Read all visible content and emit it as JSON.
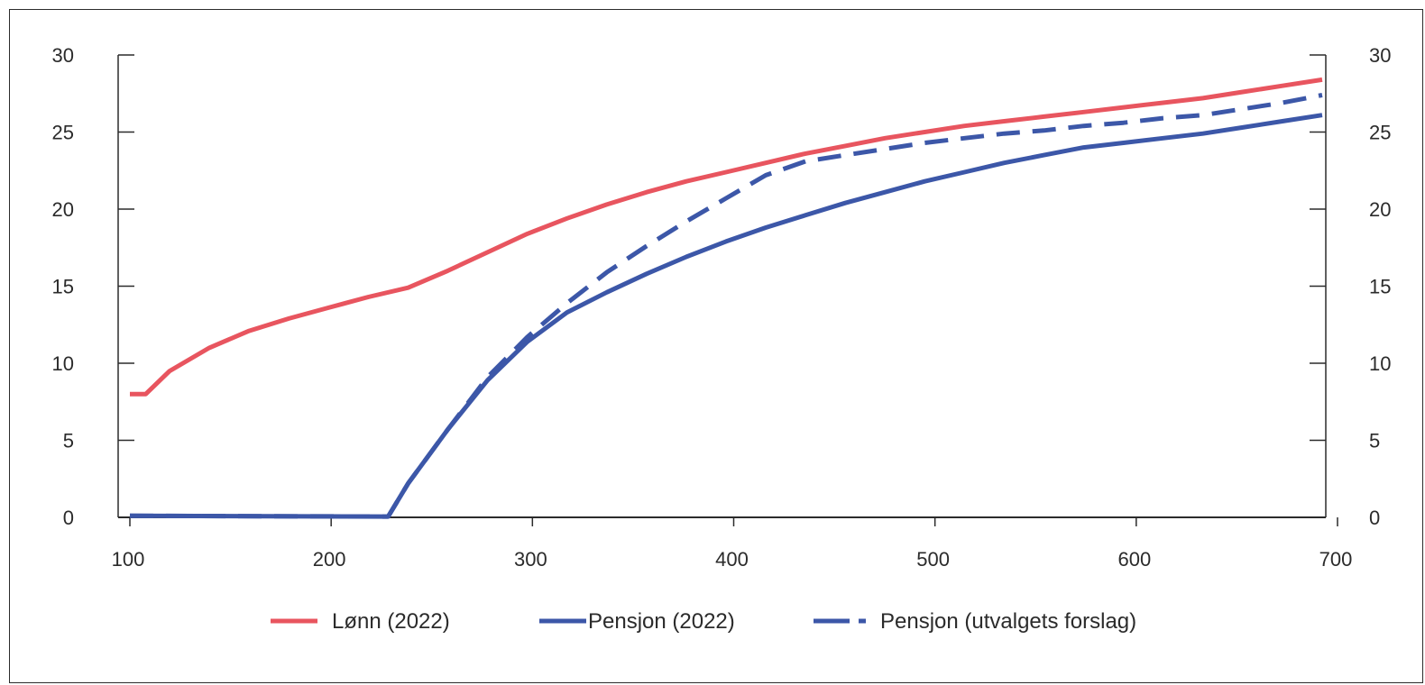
{
  "chart_data": {
    "type": "line",
    "title": "",
    "xlabel": "",
    "ylabel": "",
    "xlim": [
      100,
      700
    ],
    "ylim": [
      0,
      30
    ],
    "x_ticks": [
      "100",
      "200",
      "300",
      "400",
      "500",
      "600",
      "700"
    ],
    "y_ticks": [
      "0",
      "5",
      "10",
      "15",
      "20",
      "25",
      "30"
    ],
    "y_axis_right": true,
    "grid": false,
    "legend_position": "bottom",
    "series": [
      {
        "name": "Lønn (2022)",
        "color": "#e8555f",
        "style": "solid",
        "points": [
          [
            100,
            8.0
          ],
          [
            108,
            8.0
          ],
          [
            120,
            9.5
          ],
          [
            140,
            11.0
          ],
          [
            160,
            12.1
          ],
          [
            180,
            12.9
          ],
          [
            200,
            13.6
          ],
          [
            220,
            14.3
          ],
          [
            240,
            14.9
          ],
          [
            260,
            16.0
          ],
          [
            280,
            17.2
          ],
          [
            300,
            18.4
          ],
          [
            320,
            19.4
          ],
          [
            340,
            20.3
          ],
          [
            360,
            21.1
          ],
          [
            380,
            21.8
          ],
          [
            400,
            22.4
          ],
          [
            420,
            23.0
          ],
          [
            440,
            23.6
          ],
          [
            460,
            24.1
          ],
          [
            480,
            24.6
          ],
          [
            500,
            25.0
          ],
          [
            520,
            25.4
          ],
          [
            540,
            25.7
          ],
          [
            560,
            26.0
          ],
          [
            580,
            26.3
          ],
          [
            600,
            26.6
          ],
          [
            620,
            26.9
          ],
          [
            640,
            27.2
          ],
          [
            660,
            27.6
          ],
          [
            680,
            28.0
          ],
          [
            700,
            28.4
          ]
        ]
      },
      {
        "name": "Pensjon (2022)",
        "color": "#3c57a8",
        "style": "solid",
        "points": [
          [
            100,
            0.1
          ],
          [
            230,
            0.05
          ],
          [
            240,
            2.2
          ],
          [
            260,
            5.7
          ],
          [
            280,
            8.9
          ],
          [
            300,
            11.4
          ],
          [
            320,
            13.3
          ],
          [
            340,
            14.6
          ],
          [
            360,
            15.8
          ],
          [
            380,
            16.9
          ],
          [
            400,
            17.9
          ],
          [
            420,
            18.8
          ],
          [
            440,
            19.6
          ],
          [
            460,
            20.4
          ],
          [
            480,
            21.1
          ],
          [
            500,
            21.8
          ],
          [
            520,
            22.4
          ],
          [
            540,
            23.0
          ],
          [
            560,
            23.5
          ],
          [
            580,
            24.0
          ],
          [
            600,
            24.3
          ],
          [
            620,
            24.6
          ],
          [
            640,
            24.9
          ],
          [
            660,
            25.3
          ],
          [
            680,
            25.7
          ],
          [
            700,
            26.1
          ]
        ]
      },
      {
        "name": "Pensjon (utvalgets forslag)",
        "color": "#3c57a8",
        "style": "dashed",
        "points": [
          [
            100,
            0.1
          ],
          [
            230,
            0.05
          ],
          [
            240,
            2.2
          ],
          [
            260,
            5.7
          ],
          [
            280,
            9.1
          ],
          [
            300,
            11.7
          ],
          [
            320,
            13.9
          ],
          [
            340,
            15.9
          ],
          [
            360,
            17.6
          ],
          [
            380,
            19.2
          ],
          [
            400,
            20.7
          ],
          [
            420,
            22.2
          ],
          [
            440,
            23.1
          ],
          [
            460,
            23.5
          ],
          [
            480,
            23.9
          ],
          [
            500,
            24.3
          ],
          [
            520,
            24.6
          ],
          [
            540,
            24.9
          ],
          [
            560,
            25.1
          ],
          [
            580,
            25.4
          ],
          [
            600,
            25.6
          ],
          [
            620,
            25.9
          ],
          [
            640,
            26.1
          ],
          [
            660,
            26.5
          ],
          [
            680,
            26.9
          ],
          [
            700,
            27.4
          ]
        ]
      }
    ]
  }
}
